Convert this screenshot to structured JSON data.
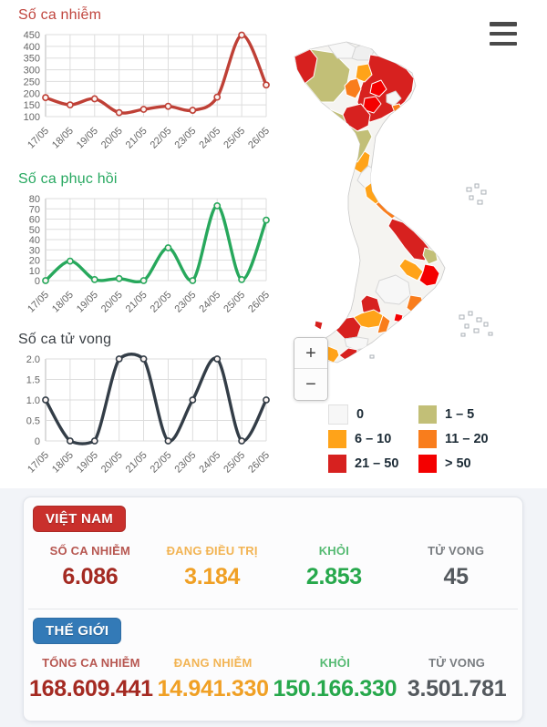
{
  "chart_data": [
    {
      "type": "line",
      "title": "Số ca nhiễm",
      "title_color": "#c0453e",
      "line_color": "#bf4036",
      "categories": [
        "17/05",
        "18/05",
        "19/05",
        "20/05",
        "21/05",
        "22/05",
        "23/05",
        "24/05",
        "25/05",
        "26/05"
      ],
      "values": [
        181,
        150,
        176,
        117,
        131,
        144,
        127,
        183,
        448,
        235
      ],
      "ylim": [
        100,
        450
      ],
      "ytick_step": 50,
      "grid": true,
      "xlabel": "",
      "ylabel": ""
    },
    {
      "type": "line",
      "title": "Số ca phục hồi",
      "title_color": "#27a860",
      "line_color": "#27a85c",
      "categories": [
        "17/05",
        "18/05",
        "19/05",
        "20/05",
        "21/05",
        "22/05",
        "23/05",
        "24/05",
        "25/05",
        "26/05"
      ],
      "values": [
        0,
        19,
        1,
        2,
        0,
        32,
        0,
        73,
        1,
        59
      ],
      "ylim": [
        0,
        80
      ],
      "ytick_step": 10,
      "grid": true,
      "xlabel": "",
      "ylabel": ""
    },
    {
      "type": "line",
      "title": "Số ca tử vong",
      "title_color": "#3c4146",
      "line_color": "#333d47",
      "categories": [
        "17/05",
        "18/05",
        "19/05",
        "20/05",
        "21/05",
        "22/05",
        "23/05",
        "24/05",
        "25/05",
        "26/05"
      ],
      "values": [
        1,
        0,
        0,
        2,
        2,
        0,
        1,
        2,
        0,
        1
      ],
      "ylim": [
        0,
        2
      ],
      "ytick_step": 0.5,
      "grid": true,
      "xlabel": "",
      "ylabel": ""
    }
  ],
  "map": {
    "icons": {
      "menu": "hamburger-icon",
      "zoom_in": "plus-icon",
      "zoom_out": "minus-icon"
    },
    "zoom_in_label": "+",
    "zoom_out_label": "−",
    "legend": [
      {
        "label": "0",
        "color": "#f7f7f7"
      },
      {
        "label": "1 – 5",
        "color": "#c2bf77"
      },
      {
        "label": "6 – 10",
        "color": "#ffa319"
      },
      {
        "label": "11 – 20",
        "color": "#f97d1c"
      },
      {
        "label": "21 – 50",
        "color": "#d7211f"
      },
      {
        "label": "> 50",
        "color": "#f40000"
      }
    ]
  },
  "panels": {
    "vietnam": {
      "badge": "VIỆT NAM",
      "badge_color": "#c9302c",
      "stats": [
        {
          "label": "SỐ CA NHIỄM",
          "value": "6.086",
          "color": "#a42a22"
        },
        {
          "label": "ĐANG ĐIỀU TRỊ",
          "value": "3.184",
          "color": "#f0a025"
        },
        {
          "label": "KHỎI",
          "value": "2.853",
          "color": "#27a84c"
        },
        {
          "label": "TỬ VONG",
          "value": "45",
          "color": "#54595e"
        }
      ]
    },
    "world": {
      "badge": "THẾ GIỚI",
      "badge_color": "#337ab7",
      "stats": [
        {
          "label": "TỔNG CA NHIỄM",
          "value": "168.609.441",
          "color": "#a42a22"
        },
        {
          "label": "ĐANG NHIỄM",
          "value": "14.941.330",
          "color": "#f0a025"
        },
        {
          "label": "KHỎI",
          "value": "150.166.330",
          "color": "#27a84c"
        },
        {
          "label": "TỬ VONG",
          "value": "3.501.781",
          "color": "#54595e"
        }
      ]
    }
  }
}
